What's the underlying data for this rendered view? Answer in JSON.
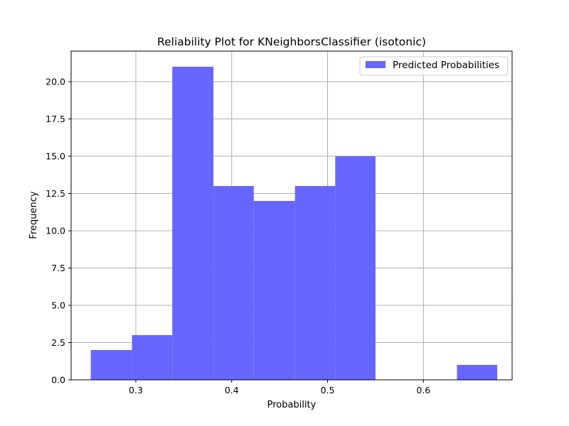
{
  "chart_data": {
    "type": "bar",
    "title": "Reliability Plot for KNeighborsClassifier (isotonic)",
    "xlabel": "Probability",
    "ylabel": "Frequency",
    "xlim": [
      0.2325,
      0.6925
    ],
    "ylim": [
      0,
      22.05
    ],
    "x_ticks": [
      0.3,
      0.4,
      0.5,
      0.6
    ],
    "x_tick_labels": [
      "0.3",
      "0.4",
      "0.5",
      "0.6"
    ],
    "y_ticks": [
      0,
      2.5,
      5,
      7.5,
      10,
      12.5,
      15,
      17.5,
      20
    ],
    "y_tick_labels": [
      "0.0",
      "2.5",
      "5.0",
      "7.5",
      "10.0",
      "12.5",
      "15.0",
      "17.5",
      "20.0"
    ],
    "grid": true,
    "legend_position": "top-right",
    "series": [
      {
        "name": "Predicted Probabilities",
        "color": "#6666ff",
        "bins": [
          {
            "start": 0.253,
            "end": 0.296,
            "count": 2
          },
          {
            "start": 0.296,
            "end": 0.338,
            "count": 3
          },
          {
            "start": 0.338,
            "end": 0.381,
            "count": 21
          },
          {
            "start": 0.381,
            "end": 0.423,
            "count": 13
          },
          {
            "start": 0.423,
            "end": 0.466,
            "count": 12
          },
          {
            "start": 0.466,
            "end": 0.508,
            "count": 13
          },
          {
            "start": 0.508,
            "end": 0.55,
            "count": 15
          },
          {
            "start": 0.55,
            "end": 0.592,
            "count": 0
          },
          {
            "start": 0.592,
            "end": 0.635,
            "count": 0
          },
          {
            "start": 0.635,
            "end": 0.677,
            "count": 1
          }
        ]
      }
    ]
  }
}
